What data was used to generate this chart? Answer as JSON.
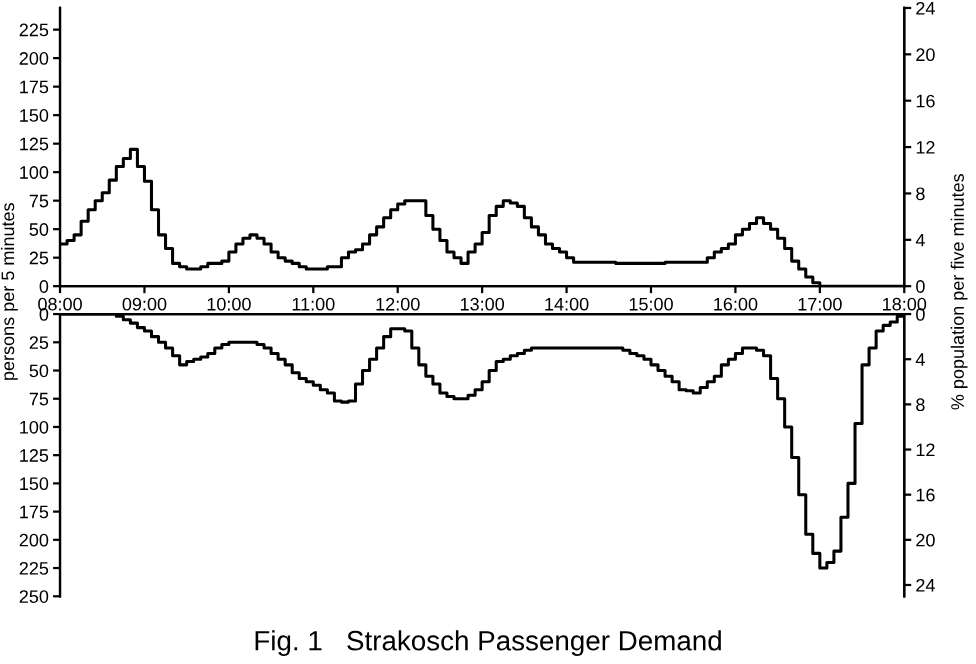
{
  "chart_data": [
    {
      "type": "step",
      "ylabel": "persons per 5 minutes",
      "y2label": "% population per five minutes",
      "xlim": [
        8,
        18
      ],
      "xticks": [
        {
          "value": 8,
          "label": "08:00"
        },
        {
          "value": 9,
          "label": "09:00"
        },
        {
          "value": 10,
          "label": "10:00"
        },
        {
          "value": 11,
          "label": "11:00"
        },
        {
          "value": 12,
          "label": "12:00"
        },
        {
          "value": 13,
          "label": "13:00"
        },
        {
          "value": 14,
          "label": "14:00"
        },
        {
          "value": 15,
          "label": "15:00"
        },
        {
          "value": 16,
          "label": "16:00"
        },
        {
          "value": 17,
          "label": "17:00"
        },
        {
          "value": 18,
          "label": "18:00"
        }
      ],
      "ylim": [
        0,
        244
      ],
      "yticks": [
        0,
        25,
        50,
        75,
        100,
        125,
        150,
        175,
        200,
        225
      ],
      "y2lim": [
        0,
        24
      ],
      "y2ticks": [
        0,
        4,
        8,
        12,
        16,
        20,
        24
      ],
      "grid": false,
      "legend": false,
      "series": [
        {
          "color": "#000000",
          "x": [
            8,
            8.0833,
            8.1667,
            8.25,
            8.3333,
            8.4167,
            8.5,
            8.5833,
            8.6667,
            8.75,
            8.8333,
            8.9167,
            9,
            9.0833,
            9.1667,
            9.25,
            9.3333,
            9.4167,
            9.5,
            9.6667,
            9.75,
            9.9167,
            10,
            10.0833,
            10.1667,
            10.25,
            10.3333,
            10.4167,
            10.5,
            10.5833,
            10.6667,
            10.75,
            10.8333,
            10.9167,
            11.1667,
            11.3333,
            11.4167,
            11.5,
            11.5833,
            11.6667,
            11.75,
            11.8333,
            11.9167,
            12,
            12.0833,
            12.3333,
            12.4167,
            12.5,
            12.5833,
            12.6667,
            12.75,
            12.8333,
            12.9167,
            13,
            13.0833,
            13.1667,
            13.25,
            13.3333,
            13.4167,
            13.5,
            13.5833,
            13.6667,
            13.75,
            13.8333,
            13.9167,
            14,
            14.0833,
            14.5833,
            15.1667,
            15.6667,
            15.75,
            15.8333,
            15.9167,
            16,
            16.0833,
            16.1667,
            16.25,
            16.3333,
            16.4167,
            16.5,
            16.5833,
            16.6667,
            16.75,
            16.8333,
            16.9167,
            17,
            18
          ],
          "values": [
            37,
            40,
            45,
            57,
            67,
            75,
            82,
            93,
            105,
            112,
            120,
            105,
            92,
            67,
            45,
            33,
            20,
            17,
            15,
            17,
            20,
            22,
            30,
            37,
            42,
            45,
            42,
            37,
            30,
            25,
            22,
            20,
            17,
            15,
            17,
            25,
            30,
            32,
            37,
            45,
            52,
            60,
            67,
            72,
            75,
            62,
            50,
            40,
            30,
            25,
            20,
            30,
            37,
            47,
            62,
            70,
            75,
            73,
            70,
            60,
            52,
            45,
            37,
            33,
            30,
            25,
            21,
            20,
            21,
            25,
            30,
            33,
            37,
            45,
            50,
            55,
            60,
            55,
            50,
            42,
            33,
            22,
            15,
            8,
            3,
            0,
            0
          ]
        }
      ]
    },
    {
      "type": "step",
      "title": "Fig. 1   Strakosch Passenger Demand",
      "xlim": [
        8,
        18
      ],
      "ylim": [
        250,
        0
      ],
      "yticks": [
        0,
        25,
        50,
        75,
        100,
        125,
        150,
        175,
        200,
        225,
        250
      ],
      "y2lim": [
        25,
        0
      ],
      "y2ticks": [
        0,
        4,
        8,
        12,
        16,
        20,
        24
      ],
      "tick_labels": "y",
      "grid": false,
      "legend": false,
      "series": [
        {
          "color": "#000000",
          "x": [
            8,
            8.6667,
            8.75,
            8.8333,
            8.9167,
            9,
            9.0833,
            9.1667,
            9.25,
            9.3333,
            9.4167,
            9.5,
            9.5833,
            9.6667,
            9.75,
            9.8333,
            9.9167,
            10,
            10.3333,
            10.4167,
            10.5,
            10.5833,
            10.6667,
            10.75,
            10.8333,
            10.9167,
            11,
            11.0833,
            11.1667,
            11.25,
            11.3333,
            11.4167,
            11.5,
            11.5833,
            11.6667,
            11.75,
            11.8333,
            11.9167,
            12.0833,
            12.1667,
            12.25,
            12.3333,
            12.4167,
            12.5,
            12.5833,
            12.6667,
            12.8333,
            12.9167,
            13,
            13.0833,
            13.1667,
            13.25,
            13.3333,
            13.4167,
            13.5,
            13.5833,
            14.6667,
            14.75,
            14.8333,
            14.9167,
            15,
            15.0833,
            15.1667,
            15.25,
            15.3333,
            15.4167,
            15.5,
            15.5833,
            15.6667,
            15.75,
            15.8333,
            15.9167,
            16,
            16.0833,
            16.25,
            16.3333,
            16.4167,
            16.5,
            16.5833,
            16.6667,
            16.75,
            16.8333,
            16.9167,
            17,
            17.0833,
            17.1667,
            17.25,
            17.3333,
            17.4167,
            17.5,
            17.5833,
            17.6667,
            17.75,
            17.8333,
            17.9167,
            18
          ],
          "values": [
            0,
            2,
            5,
            8,
            12,
            15,
            20,
            25,
            30,
            37,
            45,
            42,
            40,
            38,
            35,
            30,
            27,
            25,
            27,
            30,
            35,
            40,
            45,
            52,
            57,
            60,
            63,
            67,
            70,
            77,
            78,
            77,
            62,
            50,
            40,
            30,
            20,
            13,
            15,
            30,
            45,
            55,
            62,
            70,
            73,
            75,
            72,
            67,
            60,
            50,
            42,
            40,
            37,
            35,
            32,
            30,
            32,
            35,
            37,
            40,
            45,
            50,
            55,
            60,
            67,
            68,
            70,
            65,
            60,
            55,
            45,
            40,
            35,
            30,
            32,
            37,
            57,
            75,
            100,
            127,
            160,
            195,
            212,
            225,
            220,
            210,
            180,
            150,
            97,
            45,
            30,
            15,
            10,
            7,
            2,
            2
          ]
        }
      ]
    }
  ]
}
